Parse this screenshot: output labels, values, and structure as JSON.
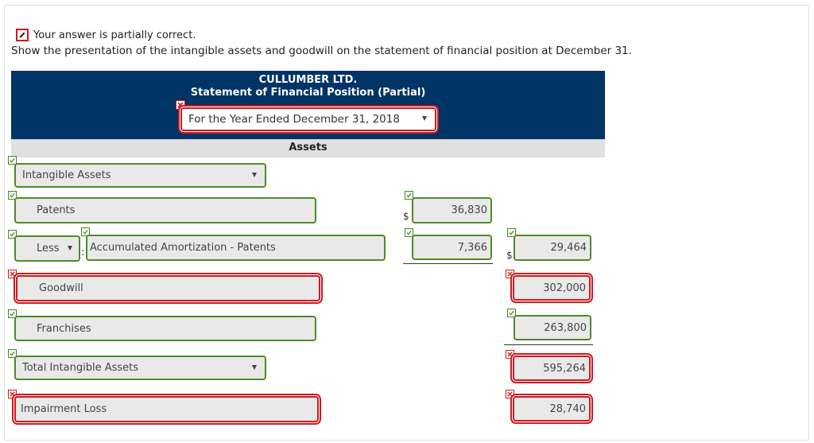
{
  "status": {
    "text": "Your answer is partially correct."
  },
  "instruction": "Show the presentation of the intangible assets and goodwill on the statement of financial position at December 31.",
  "header": {
    "company": "CULLUMBER LTD.",
    "statement": "Statement of Financial Position (Partial)",
    "period": "For the Year Ended December 31, 2018",
    "section": "Assets"
  },
  "rows": {
    "intangible": {
      "label": "Intangible Assets"
    },
    "patents": {
      "label": "Patents",
      "amount": "36,830",
      "currency": "$"
    },
    "less": {
      "operator": "Less",
      "label": "Accumulated Amortization - Patents",
      "amount": "7,366",
      "net": "29,464",
      "currency": "$",
      "colon": ":"
    },
    "goodwill": {
      "label": "Goodwill",
      "amount": "302,000"
    },
    "franchises": {
      "label": "Franchises",
      "amount": "263,800"
    },
    "total": {
      "label": "Total Intangible Assets",
      "amount": "595,264"
    },
    "impairment": {
      "label": "Impairment Loss",
      "amount": "28,740"
    }
  },
  "colors": {
    "header_bg": "#003366",
    "correct": "#4f8a28",
    "incorrect": "#d0191f",
    "field_bg": "#e9e9e9"
  }
}
